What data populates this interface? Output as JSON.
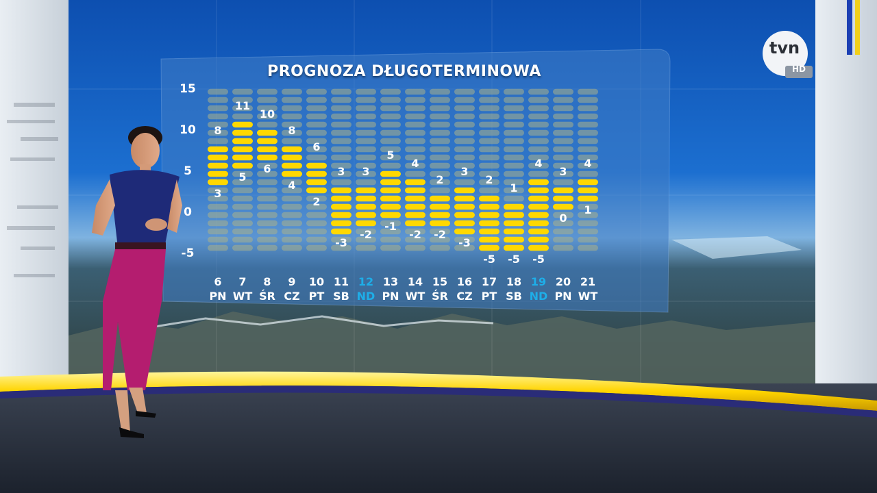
{
  "broadcast": {
    "logo": "tvn",
    "logo_badge": "HD"
  },
  "colors": {
    "bar_active": "#ffd800",
    "bar_inactive": "#a9b08a",
    "weekend_label": "#1eaee8",
    "label": "#ffffff",
    "panel": "#3f7bc4"
  },
  "chart_data": {
    "type": "bar",
    "title": "PROGNOZA DŁUGOTERMINOWA",
    "ylim": [
      -5,
      15
    ],
    "yticks": [
      "15",
      "10",
      "5",
      "0",
      "-5"
    ],
    "days": [
      {
        "date": "6",
        "weekday": "PN",
        "max": 8,
        "min": 3,
        "weekend": false
      },
      {
        "date": "7",
        "weekday": "WT",
        "max": 11,
        "min": 5,
        "weekend": false
      },
      {
        "date": "8",
        "weekday": "ŚR",
        "max": 10,
        "min": 6,
        "weekend": false
      },
      {
        "date": "9",
        "weekday": "CZ",
        "max": 8,
        "min": 4,
        "weekend": false
      },
      {
        "date": "10",
        "weekday": "PT",
        "max": 6,
        "min": 2,
        "weekend": false
      },
      {
        "date": "11",
        "weekday": "SB",
        "max": 3,
        "min": -3,
        "weekend": false
      },
      {
        "date": "12",
        "weekday": "ND",
        "max": 3,
        "min": -2,
        "weekend": true
      },
      {
        "date": "13",
        "weekday": "PN",
        "max": 5,
        "min": -1,
        "weekend": false
      },
      {
        "date": "14",
        "weekday": "WT",
        "max": 4,
        "min": -2,
        "weekend": false
      },
      {
        "date": "15",
        "weekday": "ŚR",
        "max": 2,
        "min": -2,
        "weekend": false
      },
      {
        "date": "16",
        "weekday": "CZ",
        "max": 3,
        "min": -3,
        "weekend": false
      },
      {
        "date": "17",
        "weekday": "PT",
        "max": 2,
        "min": -5,
        "weekend": false
      },
      {
        "date": "18",
        "weekday": "SB",
        "max": 1,
        "min": -5,
        "weekend": false
      },
      {
        "date": "19",
        "weekday": "ND",
        "max": 4,
        "min": -5,
        "weekend": true
      },
      {
        "date": "20",
        "weekday": "PN",
        "max": 3,
        "min": 0,
        "weekend": false
      },
      {
        "date": "21",
        "weekday": "WT",
        "max": 4,
        "min": 1,
        "weekend": false
      }
    ]
  }
}
